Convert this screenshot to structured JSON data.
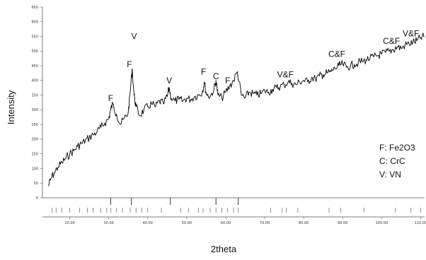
{
  "chart_data": {
    "type": "line",
    "title": "",
    "xlabel": "2theta",
    "ylabel": "Intensity",
    "xlim": [
      13,
      111
    ],
    "ylim": [
      0,
      650
    ],
    "x_ticks": [
      20,
      30,
      40,
      50,
      60,
      70,
      80,
      90,
      100,
      110
    ],
    "x_tick_labels": [
      "20.00",
      "30.00",
      "40.00",
      "50.00",
      "60.00",
      "70.00",
      "80.00",
      "90.00",
      "100.00",
      "110.00"
    ],
    "y_ticks": [
      0,
      50,
      100,
      150,
      200,
      250,
      300,
      350,
      400,
      450,
      500,
      550,
      600,
      650
    ],
    "y_tick_labels": [
      "0",
      "50",
      "100",
      "150",
      "200",
      "250",
      "300",
      "350",
      "400",
      "450",
      "500",
      "550",
      "600",
      "650"
    ],
    "grid": false,
    "series": [
      {
        "name": "",
        "color": "#000000",
        "x": [
          14.5,
          15,
          16,
          17,
          18,
          19,
          20,
          21,
          22,
          23,
          24,
          25,
          26,
          27,
          28,
          29,
          30,
          30.5,
          31,
          32,
          33,
          34,
          35,
          35.5,
          36,
          36.5,
          37,
          38,
          39,
          40,
          41,
          42,
          43,
          44,
          45,
          45.5,
          46,
          47,
          48,
          49,
          50,
          51,
          52,
          53,
          54,
          54.5,
          55,
          56,
          57,
          57.5,
          58,
          59,
          60,
          61,
          62,
          63,
          64,
          65,
          66,
          67,
          68,
          69,
          70,
          71,
          72,
          73,
          74,
          75,
          76,
          77,
          78,
          79,
          80,
          81,
          82,
          83,
          84,
          85,
          86,
          87,
          88,
          89,
          90,
          91,
          92,
          93,
          94,
          95,
          96,
          97,
          98,
          99,
          100,
          101,
          102,
          103,
          104,
          105,
          106,
          107,
          108,
          109,
          110,
          111
        ],
        "y": [
          40,
          60,
          85,
          105,
          120,
          135,
          150,
          160,
          175,
          185,
          195,
          205,
          215,
          225,
          240,
          255,
          270,
          300,
          320,
          285,
          250,
          270,
          290,
          360,
          440,
          350,
          310,
          280,
          300,
          310,
          320,
          310,
          330,
          320,
          345,
          375,
          340,
          330,
          335,
          330,
          340,
          335,
          345,
          350,
          360,
          395,
          355,
          345,
          370,
          400,
          350,
          340,
          360,
          380,
          400,
          430,
          350,
          340,
          360,
          355,
          350,
          355,
          365,
          360,
          370,
          375,
          380,
          385,
          395,
          390,
          385,
          395,
          400,
          395,
          410,
          405,
          415,
          420,
          425,
          430,
          440,
          450,
          455,
          445,
          450,
          455,
          460,
          465,
          470,
          475,
          480,
          485,
          490,
          495,
          500,
          505,
          515,
          510,
          520,
          525,
          530,
          535,
          545,
          550
        ]
      }
    ],
    "annotations": [
      {
        "text": "F",
        "x": 30.5,
        "y": 330
      },
      {
        "text": "F",
        "x": 35.3,
        "y": 445
      },
      {
        "text": "V",
        "x": 36.5,
        "y": 540
      },
      {
        "text": "V",
        "x": 45.5,
        "y": 390
      },
      {
        "text": "F",
        "x": 54.3,
        "y": 420
      },
      {
        "text": "C",
        "x": 57.5,
        "y": 405
      },
      {
        "text": "F",
        "x": 60.5,
        "y": 390
      },
      {
        "text": "V&F",
        "x": 75.3,
        "y": 410
      },
      {
        "text": "C&F",
        "x": 88.5,
        "y": 480
      },
      {
        "text": "C&F",
        "x": 102.5,
        "y": 525
      },
      {
        "text": "V&F",
        "x": 107.5,
        "y": 550
      }
    ],
    "reference_lines": [
      30.5,
      35.8,
      45.8,
      57.5,
      63.2
    ],
    "reference_ticks": [
      15.5,
      16.5,
      18,
      20,
      22.5,
      24.5,
      26,
      28,
      29.5,
      30.5,
      32,
      33.5,
      35.5,
      37,
      38.5,
      40,
      43.5,
      48.5,
      50.5,
      53,
      54.2,
      56,
      57.5,
      59,
      60.5,
      62,
      63.2,
      71.5,
      74.5,
      75.5,
      78.5,
      86.5,
      89.5,
      95.5,
      103.5,
      107.5,
      110
    ]
  },
  "legend": {
    "position": "right",
    "items": [
      "F: Fe2O3",
      "C: CrC",
      "V: VN"
    ]
  }
}
